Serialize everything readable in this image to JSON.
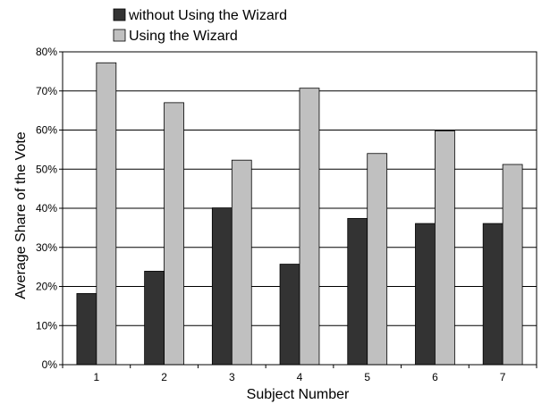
{
  "chart_data": {
    "type": "bar",
    "categories": [
      "1",
      "2",
      "3",
      "4",
      "5",
      "6",
      "7"
    ],
    "series": [
      {
        "name": "without Using the Wizard",
        "color": "#333333",
        "values": [
          18.2,
          23.9,
          40.1,
          25.7,
          37.4,
          36.1,
          36.1
        ]
      },
      {
        "name": "Using the Wizard",
        "color": "#c0c0c0",
        "values": [
          77.2,
          67.0,
          52.3,
          70.7,
          54.0,
          59.8,
          51.2
        ]
      }
    ],
    "xlabel": "Subject Number",
    "ylabel": "Average Share of the Vote",
    "ylim": [
      0,
      80
    ],
    "yticks": [
      0,
      10,
      20,
      30,
      40,
      50,
      60,
      70,
      80
    ],
    "ytick_labels": [
      "0%",
      "10%",
      "20%",
      "30%",
      "40%",
      "50%",
      "60%",
      "70%",
      "80%"
    ],
    "grid": true,
    "legend_position": "top-left"
  }
}
